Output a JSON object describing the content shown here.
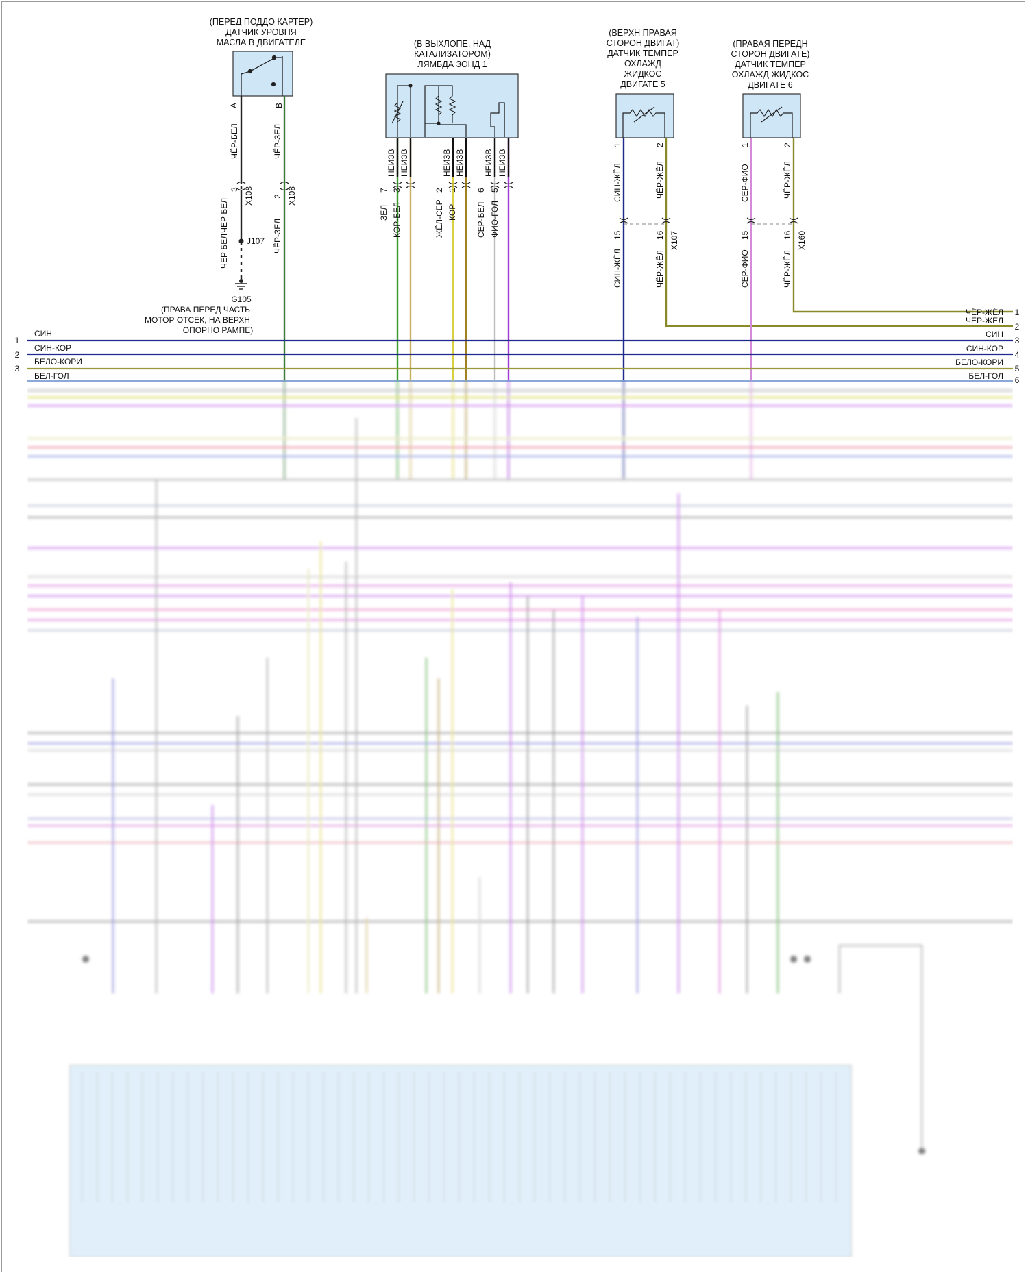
{
  "components": {
    "oil_sensor": {
      "title_lines": [
        "(ПЕРЕД ПОДДО КАРТЕР)",
        "ДАТЧИК УРОВНЯ",
        "МАСЛА В ДВИГАТЕЛЕ"
      ],
      "pin_a": "A",
      "pin_b": "B",
      "wire_a": "ЧЁР-БЕЛ",
      "wire_b": "ЧЁР-ЗЕЛ",
      "conn_pin_a": "3",
      "conn_pin_b": "2",
      "connector_a": "X108",
      "connector_b": "X108",
      "wire_a_lower": "ЧЕР БЕЛ",
      "splice": "J107",
      "wire_a_lower2": "ЧЕР БЕЛ",
      "ground": "G105",
      "ground_note_lines": [
        "(ПРАВА ПЕРЕД ЧАСТЬ",
        "МОТОР ОТСЕК, НА ВЕРХН",
        "ОПОРНО РАМПЕ)"
      ],
      "wire_b_lower": "ЧЁР-ЗЕЛ"
    },
    "lambda": {
      "title_lines": [
        "(В ВЫХЛОПЕ, НАД",
        "КАТАЛИЗАТОРОМ)",
        "ЛЯМБДА ЗОНД 1"
      ],
      "pins": [
        {
          "code": "НЕИЗВ",
          "num": "7",
          "wire": "ЗЕЛ",
          "color": "#3a9a2a"
        },
        {
          "code": "НЕИЗВ",
          "num": "3",
          "wire": "КОР-БЕЛ",
          "color": "#c9b060"
        },
        {
          "code": "НЕИЗВ",
          "num": "2",
          "wire": "ЖЁЛ-СЕР",
          "color": "#d8d040"
        },
        {
          "code": "НЕИЗВ",
          "num": "1",
          "wire": "КОР",
          "color": "#a08020"
        },
        {
          "code": "НЕИЗВ",
          "num": "6",
          "wire": "СЕР-БЕЛ",
          "color": "#bdbdbd"
        },
        {
          "code": "НЕИЗВ",
          "num": "5",
          "wire": "ФИО-ГОЛ",
          "color": "#a23ad6"
        }
      ]
    },
    "temp5": {
      "title_lines": [
        "(ВЕРХН ПРАВАЯ",
        "СТОРОН ДВИГАТ)",
        "ДАТЧИК ТЕМПЕР",
        "ОХЛАЖД",
        "ЖИДКОС",
        "ДВИГАТЕ 5"
      ],
      "pin1": "1",
      "pin2": "2",
      "wire1": "СИН-ЖЁЛ",
      "wire2": "ЧЁР-ЖЁЛ",
      "conn_pin1": "15",
      "conn_pin2": "16",
      "connector": "X107",
      "wire1_lower": "СИН-ЖЁЛ",
      "wire2_lower": "ЧЁР-ЖЁЛ"
    },
    "temp6": {
      "title_lines": [
        "(ПРАВАЯ ПЕРЕДН",
        "СТОРОН ДВИГАТЕ)",
        "ДАТЧИК ТЕМПЕР",
        "ОХЛАЖД ЖИДКОС",
        "ДВИГАТЕ 6"
      ],
      "pin1": "1",
      "pin2": "2",
      "wire1": "СЕР-ФИО",
      "wire2": "ЧЁР-ЖЁЛ",
      "conn_pin1": "15",
      "conn_pin2": "16",
      "connector": "X160",
      "wire1_lower": "СЕР-ФИО",
      "wire2_lower": "ЧЁР-ЖЁЛ"
    }
  },
  "bus": {
    "right": [
      {
        "num": "1",
        "label": "ЧЁР-ЖЁЛ"
      },
      {
        "num": "2",
        "label": "ЧЁР-ЖЁЛ"
      },
      {
        "num": "3",
        "label": "СИН"
      },
      {
        "num": "4",
        "label": "СИН-КОР"
      },
      {
        "num": "5",
        "label": "БЕЛО-КОРИ"
      },
      {
        "num": "6",
        "label": "БЕЛ-ГОЛ"
      }
    ],
    "left": [
      {
        "num": "1",
        "label": "СИН"
      },
      {
        "num": "2",
        "label": "СИН-КОР"
      },
      {
        "num": "3",
        "label": "БЕЛО-КОРИ"
      },
      {
        "num": "3",
        "label": "БЕЛ-ГОЛ"
      }
    ]
  },
  "colors": {
    "navy": "#1f2a8c",
    "olive": "#8a8a2a",
    "green": "#4a9a3a",
    "purple": "#9a3ad0"
  }
}
